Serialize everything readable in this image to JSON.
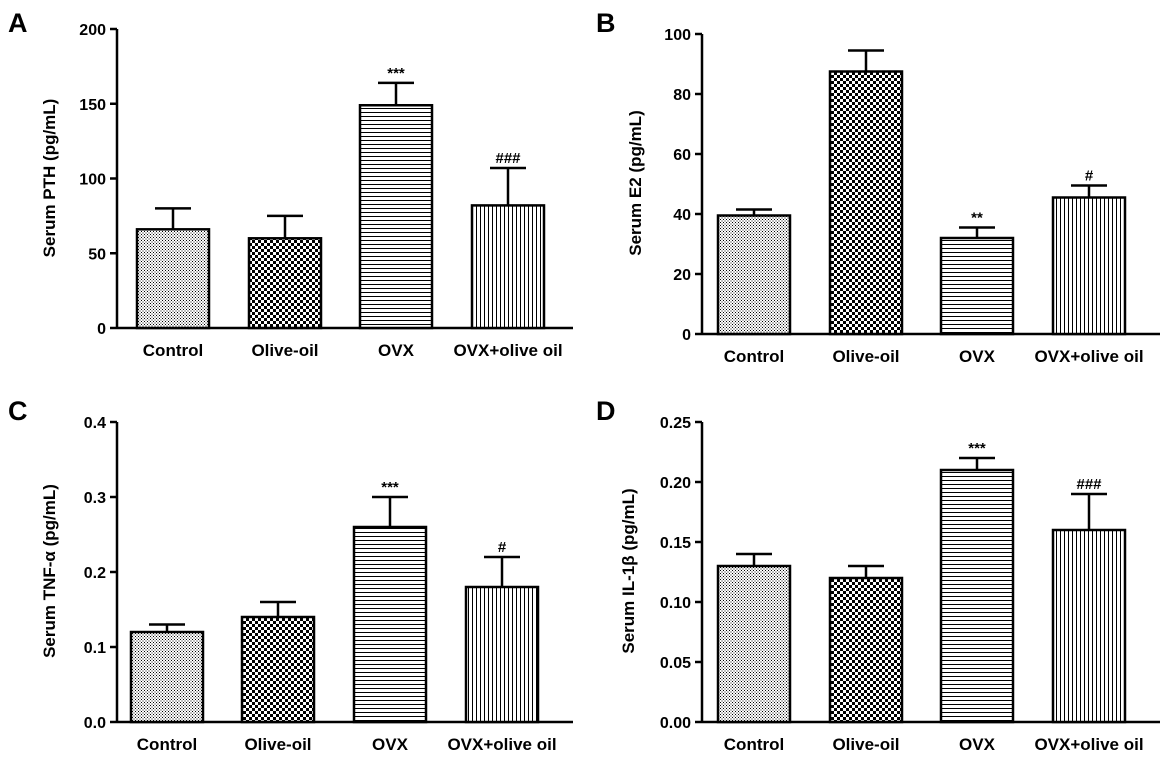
{
  "chart_data": [
    {
      "panel": "A",
      "type": "bar",
      "ylabel": "Serum PTH (pg/mL)",
      "categories": [
        "Control",
        "Olive-oil",
        "OVX",
        "OVX+olive oil"
      ],
      "values": [
        66,
        60,
        149,
        82
      ],
      "errors": [
        14,
        15,
        15,
        25
      ],
      "annotations": [
        "",
        "",
        "***",
        "###"
      ],
      "ylim": [
        0,
        200
      ],
      "yticks": [
        0,
        50,
        100,
        150,
        200
      ],
      "ytick_labels": [
        "0",
        "50",
        "100",
        "150",
        "200"
      ]
    },
    {
      "panel": "B",
      "type": "bar",
      "ylabel": "Serum E2 (pg/mL)",
      "categories": [
        "Control",
        "Olive-oil",
        "OVX",
        "OVX+olive oil"
      ],
      "values": [
        39.5,
        87.5,
        32,
        45.5
      ],
      "errors": [
        2,
        7,
        3.5,
        4
      ],
      "annotations": [
        "",
        "",
        "**",
        "#"
      ],
      "ylim": [
        0,
        100
      ],
      "yticks": [
        0,
        20,
        40,
        60,
        80,
        100
      ],
      "ytick_labels": [
        "0",
        "20",
        "40",
        "60",
        "80",
        "100"
      ]
    },
    {
      "panel": "C",
      "type": "bar",
      "ylabel": "Serum TNF-α (pg/mL)",
      "categories": [
        "Control",
        "Olive-oil",
        "OVX",
        "OVX+olive oil"
      ],
      "values": [
        0.12,
        0.14,
        0.26,
        0.18
      ],
      "errors": [
        0.01,
        0.02,
        0.04,
        0.04
      ],
      "annotations": [
        "",
        "",
        "***",
        "#"
      ],
      "ylim": [
        0,
        0.4
      ],
      "yticks": [
        0,
        0.1,
        0.2,
        0.3,
        0.4
      ],
      "ytick_labels": [
        "0.0",
        "0.1",
        "0.2",
        "0.3",
        "0.4"
      ]
    },
    {
      "panel": "D",
      "type": "bar",
      "ylabel": "Serum IL-1β (pg/mL)",
      "categories": [
        "Control",
        "Olive-oil",
        "OVX",
        "OVX+olive oil"
      ],
      "values": [
        0.13,
        0.12,
        0.21,
        0.16
      ],
      "errors": [
        0.01,
        0.01,
        0.01,
        0.03
      ],
      "annotations": [
        "",
        "",
        "***",
        "###"
      ],
      "ylim": [
        0,
        0.25
      ],
      "yticks": [
        0,
        0.05,
        0.1,
        0.15,
        0.2,
        0.25
      ],
      "ytick_labels": [
        "0.00",
        "0.05",
        "0.10",
        "0.15",
        "0.20",
        "0.25"
      ]
    }
  ]
}
